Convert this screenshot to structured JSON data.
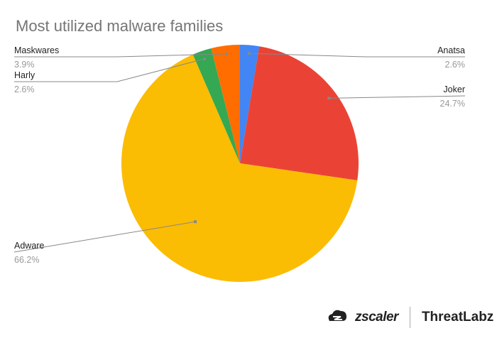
{
  "chart_data": {
    "type": "pie",
    "title": "Most utilized malware families",
    "start": "top, clockwise",
    "slices": [
      {
        "label": "Anatsa",
        "value": 2.6,
        "display": "2.6%",
        "color": "#4285f4"
      },
      {
        "label": "Joker",
        "value": 24.7,
        "display": "24.7%",
        "color": "#ea4335"
      },
      {
        "label": "Adware",
        "value": 66.2,
        "display": "66.2%",
        "color": "#fbbc04"
      },
      {
        "label": "Harly",
        "value": 2.6,
        "display": "2.6%",
        "color": "#34a853"
      },
      {
        "label": "Maskwares",
        "value": 3.9,
        "display": "3.9%",
        "color": "#ff6d01"
      }
    ]
  },
  "branding": {
    "logo_text": "zscaler",
    "product": "ThreatLabz"
  }
}
